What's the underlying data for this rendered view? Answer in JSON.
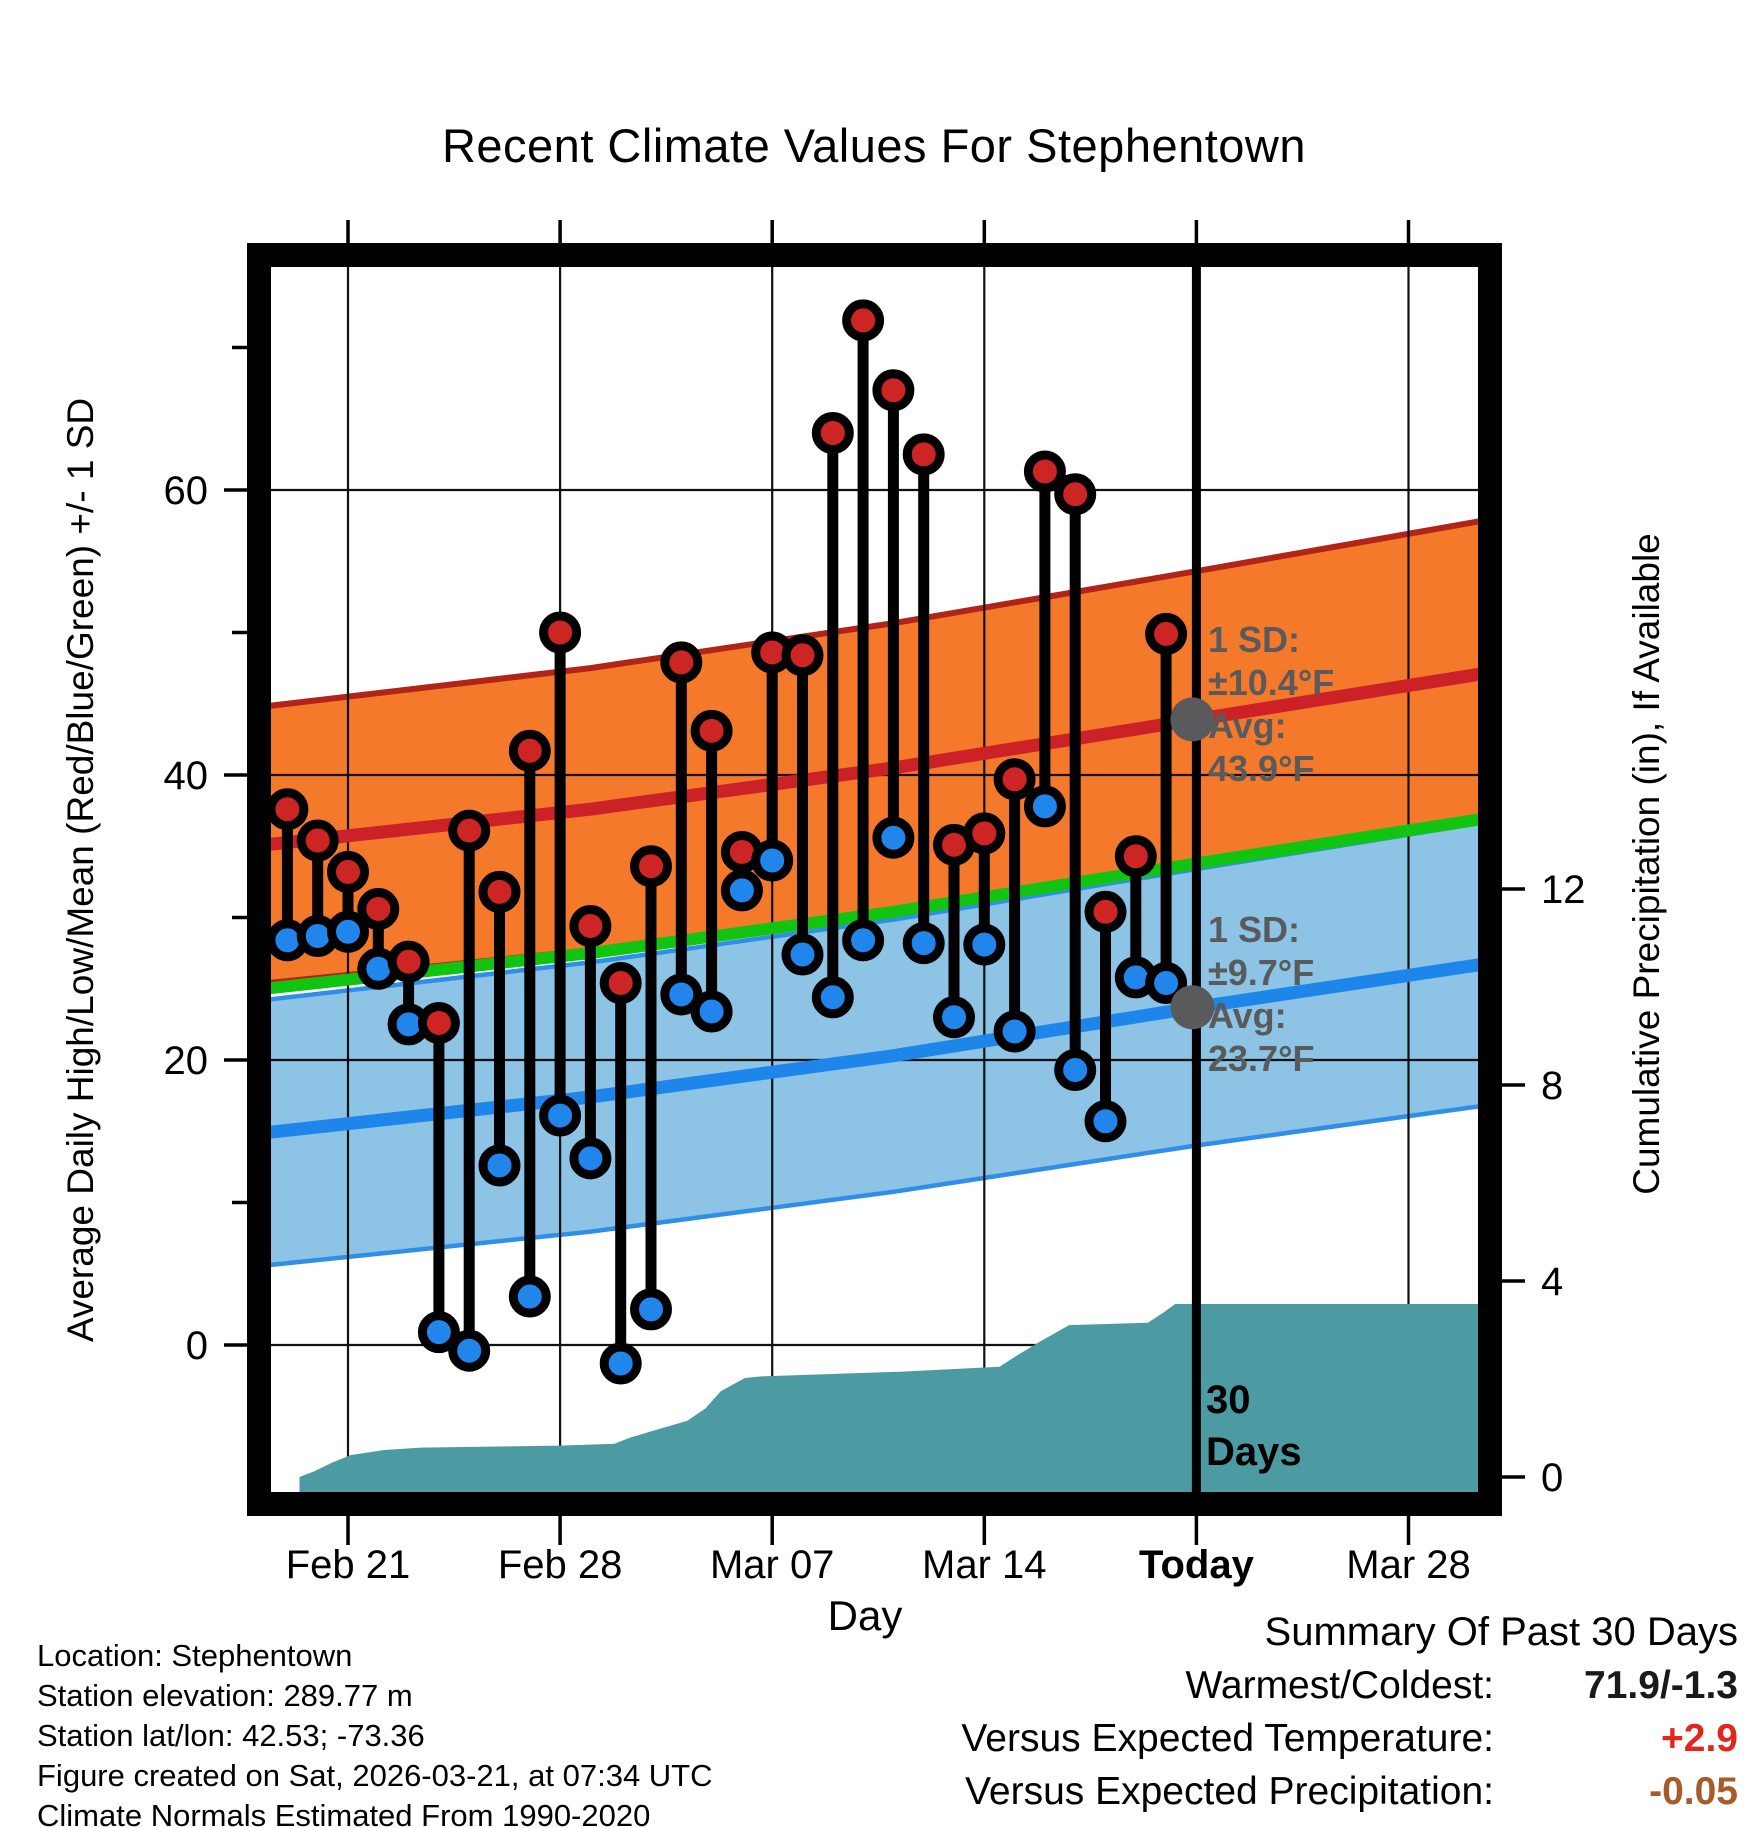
{
  "title": "Recent Climate Values For Stephentown",
  "axes": {
    "x": {
      "label": "Day",
      "tick_labels": [
        "Feb 21",
        "Feb 28",
        "Mar 07",
        "Mar 14",
        "Today",
        "Mar 28"
      ],
      "bold_label": "Today"
    },
    "y_left": {
      "label": "Average Daily High/Low/Mean (Red/Blue/Green) +/- 1 SD",
      "major_ticks": [
        0,
        20,
        40,
        60
      ],
      "minor_ticks": [
        10,
        30,
        50,
        70
      ]
    },
    "y_right": {
      "label": "Cumulative Precipitation (in), If Available",
      "major_ticks": [
        0,
        4,
        8,
        12
      ]
    }
  },
  "chart_data": {
    "type": "combo",
    "series_notes": "Red/blue dots joined by black stems = observed daily high/low temperature (F). Orange band = normal high +/- 1 SD with dark red mean-high line; light blue band = normal low +/- 1 SD with blue mean-low line; green line = normal mean. Teal filled area = cumulative precipitation on right axis. Thick vertical line marks Today (past 30 days).",
    "x": [
      "Feb 19",
      "Feb 20",
      "Feb 21",
      "Feb 22",
      "Feb 23",
      "Feb 24",
      "Feb 25",
      "Feb 26",
      "Feb 27",
      "Feb 28",
      "Mar 01",
      "Mar 02",
      "Mar 03",
      "Mar 04",
      "Mar 05",
      "Mar 06",
      "Mar 07",
      "Mar 08",
      "Mar 09",
      "Mar 10",
      "Mar 11",
      "Mar 12",
      "Mar 13",
      "Mar 14",
      "Mar 15",
      "Mar 16",
      "Mar 17",
      "Mar 18",
      "Mar 19",
      "Mar 20"
    ],
    "daily_high_f": [
      37.6,
      35.4,
      33.2,
      30.6,
      26.9,
      22.6,
      36.1,
      31.8,
      41.7,
      50.0,
      29.4,
      25.4,
      33.6,
      47.9,
      43.1,
      34.6,
      48.6,
      48.4,
      64.0,
      71.9,
      67.0,
      62.5,
      35.1,
      35.9,
      39.7,
      61.3,
      59.7,
      30.4,
      34.3,
      49.9
    ],
    "daily_low_f": [
      28.4,
      28.7,
      29.0,
      26.4,
      22.5,
      0.9,
      -0.4,
      12.6,
      3.4,
      16.1,
      13.1,
      -1.3,
      2.5,
      24.6,
      23.4,
      31.9,
      34.0,
      27.4,
      24.4,
      28.4,
      35.6,
      28.2,
      23.0,
      28.1,
      22.0,
      37.8,
      19.3,
      15.7,
      25.8,
      25.4
    ],
    "normals": {
      "anchor_day_index": [
        -2,
        10,
        20,
        30,
        40
      ],
      "high_avg_f": [
        34.8,
        37.6,
        40.5,
        43.9,
        47.3
      ],
      "low_avg_f": [
        14.6,
        17.4,
        20.3,
        23.7,
        26.9
      ],
      "mean_f": [
        24.7,
        27.5,
        30.4,
        33.8,
        37.1
      ],
      "high_sd_f": [
        9.7,
        9.9,
        10.15,
        10.4,
        10.75
      ],
      "low_sd_f": [
        9.3,
        9.45,
        9.55,
        9.7,
        9.95
      ]
    },
    "precip_cumulative_in": {
      "points_day_index_value": [
        [
          0.4,
          0
        ],
        [
          0.9,
          0.12
        ],
        [
          1.5,
          0.3
        ],
        [
          2.1,
          0.45
        ],
        [
          3.2,
          0.55
        ],
        [
          4.4,
          0.6
        ],
        [
          9.0,
          0.64
        ],
        [
          10.8,
          0.68
        ],
        [
          11.3,
          0.8
        ],
        [
          12.1,
          0.95
        ],
        [
          13.2,
          1.15
        ],
        [
          13.8,
          1.4
        ],
        [
          14.3,
          1.75
        ],
        [
          15.1,
          2.02
        ],
        [
          15.6,
          2.05
        ],
        [
          20.2,
          2.15
        ],
        [
          23.5,
          2.25
        ],
        [
          24.0,
          2.45
        ],
        [
          24.8,
          2.75
        ],
        [
          25.8,
          3.1
        ],
        [
          28.4,
          3.15
        ],
        [
          28.9,
          3.35
        ],
        [
          29.3,
          3.53
        ],
        [
          40.5,
          3.53
        ]
      ]
    },
    "x_tick_day_index": [
      2,
      9,
      16,
      23,
      30,
      37
    ],
    "today_day_index": 30,
    "ylim_f": [
      -10.5,
      75.6
    ],
    "yrange_right_in": [
      0,
      12
    ],
    "grid": true
  },
  "annotations": {
    "high": {
      "line1": "1 SD:",
      "line2": "±10.4°F",
      "line3": "Avg:",
      "line4": "43.9°F",
      "avg_f": 43.9
    },
    "low": {
      "line1": "1 SD:",
      "line2": "±9.7°F",
      "line3": "Avg:",
      "line4": "23.7°F",
      "avg_f": 23.7
    },
    "today_marker": {
      "line1": "30",
      "line2": "Days"
    }
  },
  "footer_left": [
    "Location: Stephentown",
    "Station elevation: 289.77 m",
    "Station lat/lon: 42.53; -73.36",
    "Figure created on Sat, 2026-03-21, at 07:34 UTC",
    "Climate Normals Estimated From 1990-2020"
  ],
  "summary": {
    "title": "Summary Of Past 30 Days",
    "rows": [
      {
        "label": "Warmest/Coldest:",
        "value": "71.9/-1.3",
        "color": "#1a1a1a"
      },
      {
        "label": "Versus Expected Temperature:",
        "value": "+2.9",
        "color": "#e3261d"
      },
      {
        "label": "Versus Expected Precipitation:",
        "value": "-0.05",
        "color": "#a85a28"
      }
    ]
  },
  "colors": {
    "high_band_fill": "#f5792b",
    "high_band_edge": "#b22417",
    "high_center_line": "#cd2128",
    "mean_line": "#12c412",
    "low_band_fill": "#8dc3e4",
    "low_band_edge": "#2f8fe8",
    "low_center_line": "#1e86ea",
    "precip_fill": "#4c9aa2",
    "dot_high": "#cc2524",
    "dot_low": "#2086ec",
    "stem": "#000000",
    "annotation_gray": "#595a5c",
    "today_line": "#000000",
    "grid": "#111111"
  }
}
